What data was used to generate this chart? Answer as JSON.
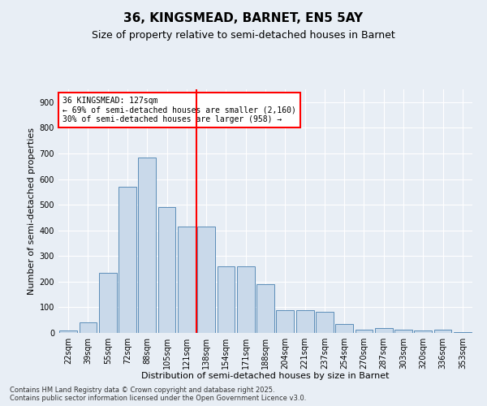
{
  "title": "36, KINGSMEAD, BARNET, EN5 5AY",
  "subtitle": "Size of property relative to semi-detached houses in Barnet",
  "xlabel": "Distribution of semi-detached houses by size in Barnet",
  "ylabel": "Number of semi-detached properties",
  "footer_line1": "Contains HM Land Registry data © Crown copyright and database right 2025.",
  "footer_line2": "Contains public sector information licensed under the Open Government Licence v3.0.",
  "bar_labels": [
    "22sqm",
    "39sqm",
    "55sqm",
    "72sqm",
    "88sqm",
    "105sqm",
    "121sqm",
    "138sqm",
    "154sqm",
    "171sqm",
    "188sqm",
    "204sqm",
    "221sqm",
    "237sqm",
    "254sqm",
    "270sqm",
    "287sqm",
    "303sqm",
    "320sqm",
    "336sqm",
    "353sqm"
  ],
  "bar_values": [
    8,
    42,
    235,
    570,
    685,
    490,
    415,
    415,
    260,
    260,
    190,
    90,
    90,
    83,
    35,
    13,
    18,
    13,
    10,
    13,
    2
  ],
  "bar_color": "#c9d9ea",
  "bar_edge_color": "#5b8db8",
  "background_color": "#e8eef5",
  "vline_color": "red",
  "annotation_title": "36 KINGSMEAD: 127sqm",
  "annotation_line1": "← 69% of semi-detached houses are smaller (2,160)",
  "annotation_line2": "30% of semi-detached houses are larger (958) →",
  "annotation_box_color": "white",
  "annotation_box_edge_color": "red",
  "ylim": [
    0,
    950
  ],
  "yticks": [
    0,
    100,
    200,
    300,
    400,
    500,
    600,
    700,
    800,
    900
  ],
  "title_fontsize": 11,
  "subtitle_fontsize": 9,
  "axis_label_fontsize": 8,
  "tick_fontsize": 7,
  "annotation_fontsize": 7
}
